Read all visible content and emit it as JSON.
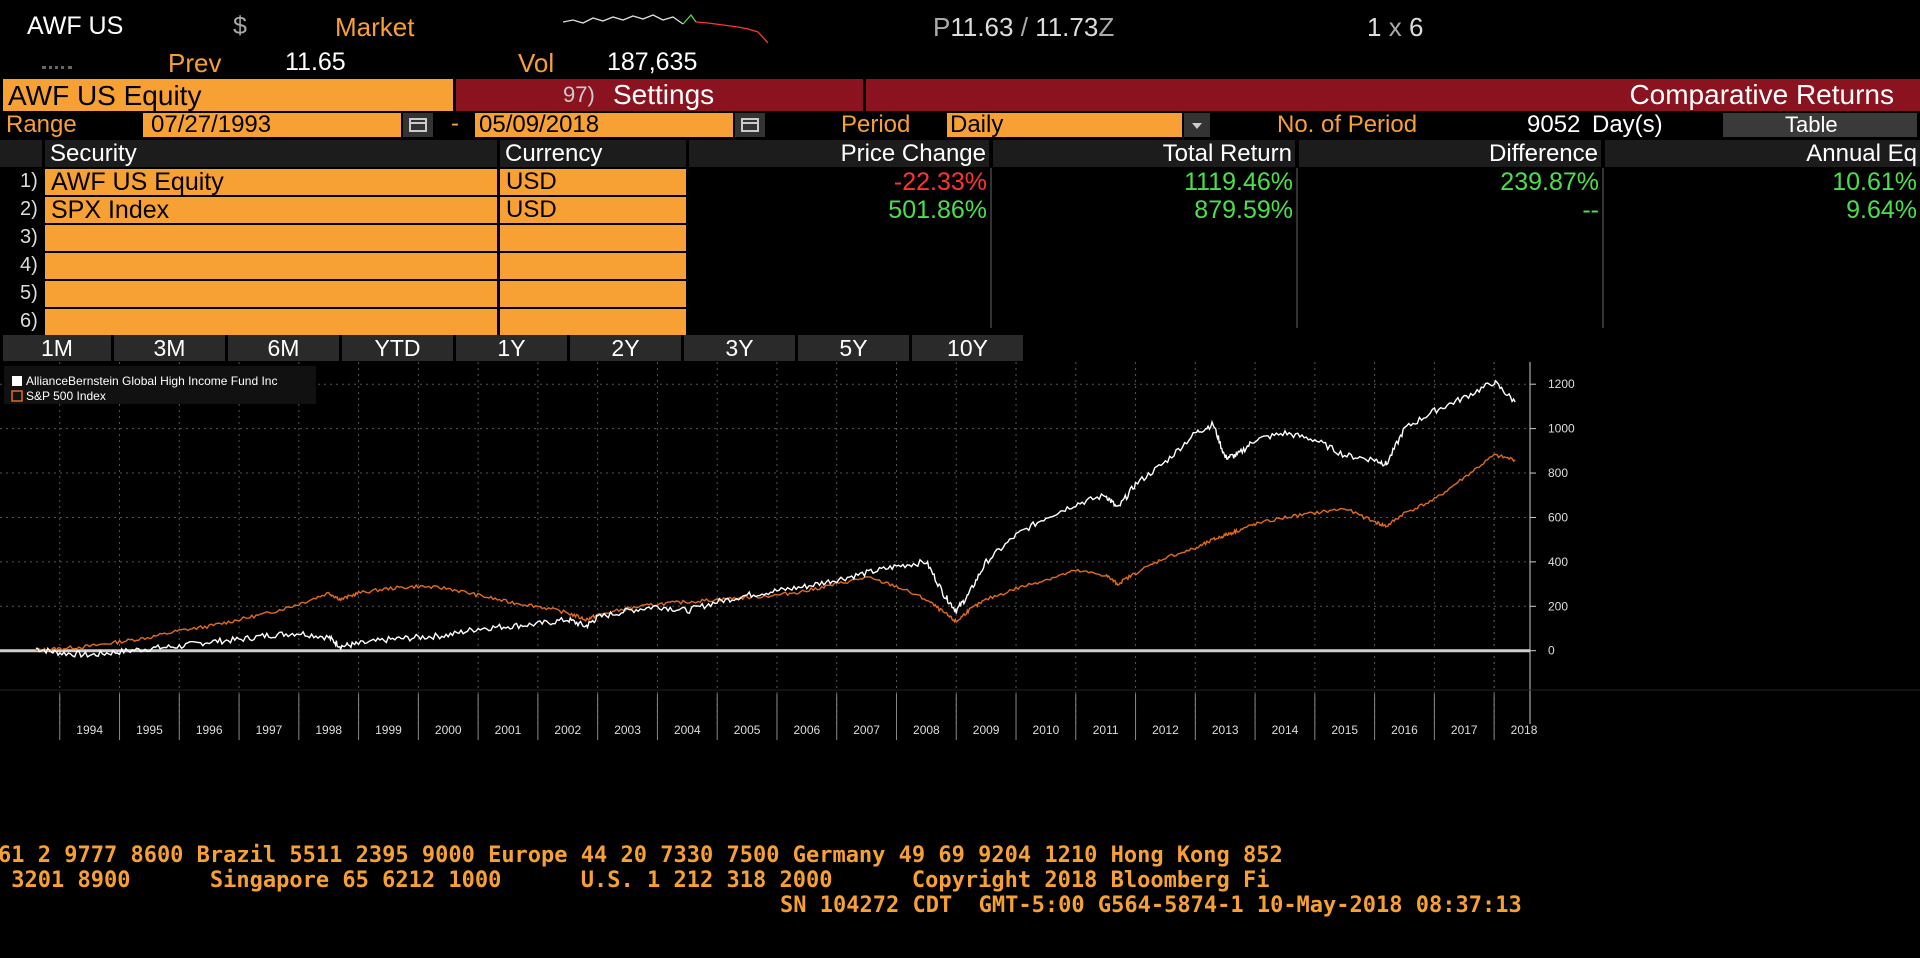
{
  "top": {
    "ticker": "AWF US",
    "currency_symbol": "$",
    "market_label": "Market",
    "prev_label": "Prev",
    "prev_value": "11.65",
    "vol_label": "Vol",
    "vol_value": "187,635",
    "bid_prefix": "P",
    "bid": "11.63",
    "separator": "/",
    "ask": "11.73",
    "ask_suffix": "Z",
    "size_left": "1",
    "size_x": "x",
    "size_right": "6"
  },
  "header": {
    "security_field": "AWF US Equity",
    "settings_number": "97)",
    "settings_label": "Settings",
    "title": "Comparative Returns"
  },
  "range": {
    "label": "Range",
    "start": "07/27/1993",
    "dash": "-",
    "end": "05/09/2018",
    "period_label": "Period",
    "period_value": "Daily",
    "num_periods_label": "No. of Period",
    "num_periods_value": "9052",
    "num_periods_unit": "Day(s)",
    "table_button": "Table"
  },
  "table": {
    "columns": [
      "Security",
      "Currency",
      "Price Change",
      "Total Return",
      "Difference",
      "Annual Eq"
    ],
    "rows": [
      {
        "num": "1)",
        "security": "AWF US Equity",
        "currency": "USD",
        "price_change": "-22.33%",
        "total_return": "1119.46%",
        "difference": "239.87%",
        "annual_eq": "10.61%"
      },
      {
        "num": "2)",
        "security": "SPX Index",
        "currency": "USD",
        "price_change": "501.86%",
        "total_return": "879.59%",
        "difference": "--",
        "annual_eq": "9.64%"
      },
      {
        "num": "3)",
        "security": "",
        "currency": "",
        "price_change": "",
        "total_return": "",
        "difference": "",
        "annual_eq": ""
      },
      {
        "num": "4)",
        "security": "",
        "currency": "",
        "price_change": "",
        "total_return": "",
        "difference": "",
        "annual_eq": ""
      },
      {
        "num": "5)",
        "security": "",
        "currency": "",
        "price_change": "",
        "total_return": "",
        "difference": "",
        "annual_eq": ""
      },
      {
        "num": "6)",
        "security": "",
        "currency": "",
        "price_change": "",
        "total_return": "",
        "difference": "",
        "annual_eq": ""
      }
    ]
  },
  "timeframes": [
    "1M",
    "3M",
    "6M",
    "YTD",
    "1Y",
    "2Y",
    "3Y",
    "5Y",
    "10Y"
  ],
  "colors": {
    "amber": "#f7a033",
    "dark_red": "#8b1320",
    "green": "#4be04b",
    "red": "#ff3333",
    "fund_line": "#ffffff",
    "index_line": "#e06a1e"
  },
  "chart_data": {
    "type": "line",
    "legend_position": "top-left",
    "grid": true,
    "ylim": [
      -150,
      1300
    ],
    "yticks": [
      0,
      200,
      400,
      600,
      800,
      1000,
      1200
    ],
    "xticks": [
      "1994",
      "1995",
      "1996",
      "1997",
      "1998",
      "1999",
      "2000",
      "2001",
      "2002",
      "2003",
      "2004",
      "2005",
      "2006",
      "2007",
      "2008",
      "2009",
      "2010",
      "2011",
      "2012",
      "2013",
      "2014",
      "2015",
      "2016",
      "2017",
      "2018"
    ],
    "x": [
      1993.6,
      1994.0,
      1994.5,
      1995.0,
      1995.5,
      1996.0,
      1996.5,
      1997.0,
      1997.5,
      1998.0,
      1998.5,
      1998.7,
      1999.0,
      1999.5,
      2000.0,
      2000.5,
      2001.0,
      2001.5,
      2002.0,
      2002.5,
      2002.8,
      2003.0,
      2003.5,
      2004.0,
      2004.5,
      2005.0,
      2005.5,
      2006.0,
      2006.5,
      2007.0,
      2007.5,
      2008.0,
      2008.5,
      2008.8,
      2009.0,
      2009.2,
      2009.5,
      2010.0,
      2010.5,
      2011.0,
      2011.5,
      2011.7,
      2012.0,
      2012.5,
      2013.0,
      2013.3,
      2013.5,
      2013.7,
      2014.0,
      2014.5,
      2015.0,
      2015.5,
      2016.0,
      2016.2,
      2016.5,
      2017.0,
      2017.5,
      2018.0,
      2018.35
    ],
    "series": [
      {
        "name": "AllianceBernstein Global High Income Fund Inc",
        "color": "#ffffff",
        "values": [
          10,
          -10,
          -20,
          -5,
          10,
          20,
          40,
          50,
          70,
          80,
          60,
          20,
          30,
          50,
          60,
          70,
          100,
          110,
          120,
          140,
          110,
          150,
          180,
          200,
          180,
          220,
          250,
          270,
          290,
          320,
          350,
          380,
          400,
          250,
          180,
          250,
          400,
          520,
          600,
          660,
          700,
          640,
          750,
          850,
          980,
          1020,
          870,
          880,
          950,
          980,
          950,
          880,
          860,
          840,
          1000,
          1080,
          1140,
          1210,
          1120
        ]
      },
      {
        "name": "S&P 500 Index",
        "color": "#e06a1e",
        "values": [
          0,
          10,
          20,
          40,
          60,
          90,
          110,
          140,
          170,
          210,
          260,
          230,
          260,
          280,
          290,
          280,
          250,
          220,
          200,
          170,
          140,
          160,
          190,
          210,
          220,
          230,
          240,
          250,
          270,
          300,
          330,
          290,
          230,
          170,
          130,
          180,
          230,
          280,
          320,
          360,
          340,
          300,
          350,
          420,
          460,
          500,
          520,
          540,
          570,
          600,
          620,
          640,
          580,
          560,
          620,
          680,
          780,
          880,
          860
        ]
      }
    ]
  },
  "footer": {
    "line1": "61 2 9777 8600 Brazil 5511 2395 9000 Europe 44 20 7330 7500 Germany 49 69 9204 1210 Hong Kong 852",
    "line2": " 3201 8900      Singapore 65 6212 1000      U.S. 1 212 318 2000      Copyright 2018 Bloomberg Fi",
    "line3": "SN 104272 CDT  GMT-5:00 G564-5874-1 10-May-2018 08:37:13"
  }
}
